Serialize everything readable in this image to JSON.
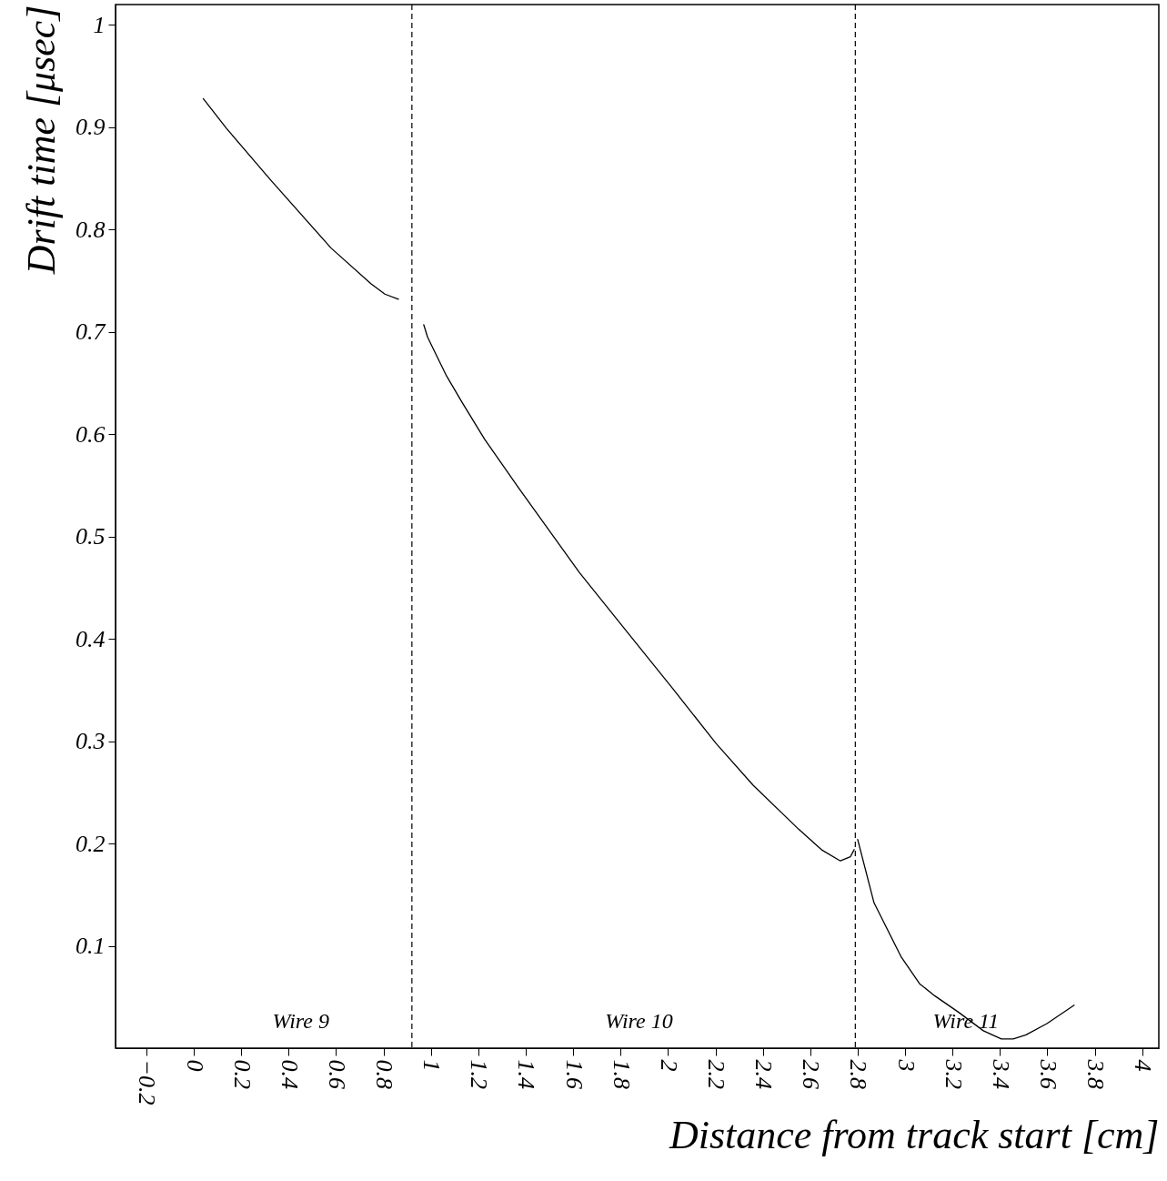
{
  "chart_data": {
    "type": "line",
    "xlabel": "Distance from track start [cm]",
    "ylabel": "Drift time [μsec]",
    "xlim": [
      -0.33,
      4.07
    ],
    "ylim": [
      0,
      1.02
    ],
    "xticks": [
      -0.2,
      0,
      0.2,
      0.4,
      0.6,
      0.8,
      1,
      1.2,
      1.4,
      1.6,
      1.8,
      2,
      2.2,
      2.4,
      2.6,
      2.8,
      3,
      3.2,
      3.4,
      3.6,
      3.8,
      4
    ],
    "yticks": [
      0.1,
      0.2,
      0.3,
      0.4,
      0.5,
      0.6,
      0.7,
      0.8,
      0.9,
      1
    ],
    "grid": false,
    "line_style": "solid",
    "marker": "none",
    "series": [
      {
        "color": "#000000",
        "x": [
          0.04,
          0.138,
          0.326,
          0.579,
          0.748,
          0.806,
          0.863
        ],
        "values": [
          0.928,
          0.899,
          0.848,
          0.782,
          0.747,
          0.737,
          0.732
        ]
      },
      {
        "color": "#000000",
        "x": [
          0.97,
          0.986,
          1.066,
          1.132,
          1.227,
          1.369,
          1.626,
          1.834,
          2.025,
          2.202,
          2.359,
          2.551,
          2.647,
          2.727,
          2.769,
          2.785
        ],
        "values": [
          0.707,
          0.695,
          0.657,
          0.631,
          0.595,
          0.548,
          0.465,
          0.405,
          0.35,
          0.298,
          0.257,
          0.214,
          0.194,
          0.183,
          0.187,
          0.194
        ]
      },
      {
        "color": "#000000",
        "x": [
          2.8,
          2.869,
          2.908,
          2.984,
          3.061,
          3.126,
          3.226,
          3.33,
          3.406,
          3.456,
          3.51,
          3.598,
          3.713
        ],
        "values": [
          0.204,
          0.142,
          0.124,
          0.089,
          0.063,
          0.051,
          0.035,
          0.017,
          0.009,
          0.009,
          0.013,
          0.024,
          0.042
        ]
      }
    ],
    "ref_lines": [
      {
        "axis": "x",
        "value": 0.92,
        "color": "#000000",
        "line_style": "dashed"
      },
      {
        "axis": "x",
        "value": 2.79,
        "color": "#000000",
        "line_style": "dashed"
      }
    ],
    "annotations": [
      "Wire 9",
      "Wire 10",
      "Wire 11"
    ]
  }
}
